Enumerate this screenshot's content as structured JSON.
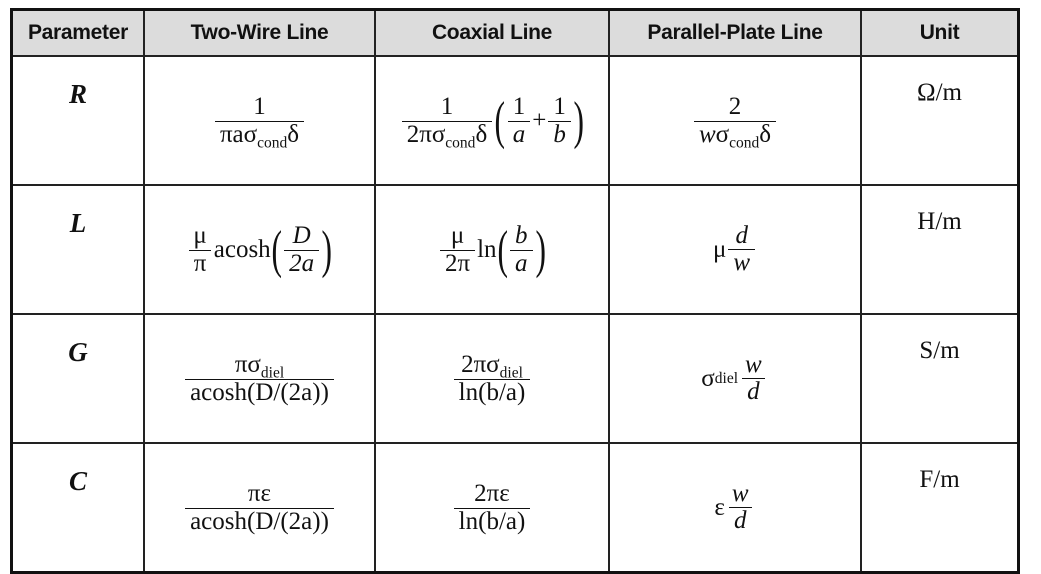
{
  "headers": [
    "Parameter",
    "Two-Wire Line",
    "Coaxial Line",
    "Parallel-Plate Line",
    "Unit"
  ],
  "rows": [
    {
      "symbol": "R",
      "unit": "Ω/m"
    },
    {
      "symbol": "L",
      "unit": "H/m"
    },
    {
      "symbol": "G",
      "unit": "S/m"
    },
    {
      "symbol": "C",
      "unit": "F/m"
    }
  ],
  "formulas": {
    "R": {
      "two_wire": {
        "num": "1",
        "den_pre": "πa",
        "sigma": "σ",
        "sub": "cond",
        "den_post": "δ"
      },
      "coax": {
        "num": "1",
        "den_pre": "2π",
        "sigma": "σ",
        "sub": "cond",
        "den_post": "δ",
        "inner_a_num": "1",
        "inner_a_den": "a",
        "plus": "+",
        "inner_b_num": "1",
        "inner_b_den": "b"
      },
      "parallel": {
        "num": "2",
        "den_pre": "w",
        "sigma": "σ",
        "sub": "cond",
        "den_post": "δ"
      }
    },
    "L": {
      "two_wire": {
        "mu": "μ",
        "pi": "π",
        "func": "acosh",
        "arg_num": "D",
        "arg_den": "2a"
      },
      "coax": {
        "mu": "μ",
        "two_pi": "2π",
        "func": "ln",
        "arg_num": "b",
        "arg_den": "a"
      },
      "parallel": {
        "mu": "μ",
        "num": "d",
        "den": "w"
      }
    },
    "G": {
      "two_wire": {
        "num_pre": "πσ",
        "sub": "diel",
        "den": "acosh(D/(2a))"
      },
      "coax": {
        "num_pre": "2πσ",
        "sub": "diel",
        "den": "ln(b/a)"
      },
      "parallel": {
        "sigma": "σ",
        "sub": "diel",
        "num": "w",
        "den": "d"
      }
    },
    "C": {
      "two_wire": {
        "num": "πε",
        "den": "acosh(D/(2a))"
      },
      "coax": {
        "num": "2πε",
        "den": "ln(b/a)"
      },
      "parallel": {
        "eps": "ε",
        "num": "w",
        "den": "d"
      }
    }
  }
}
